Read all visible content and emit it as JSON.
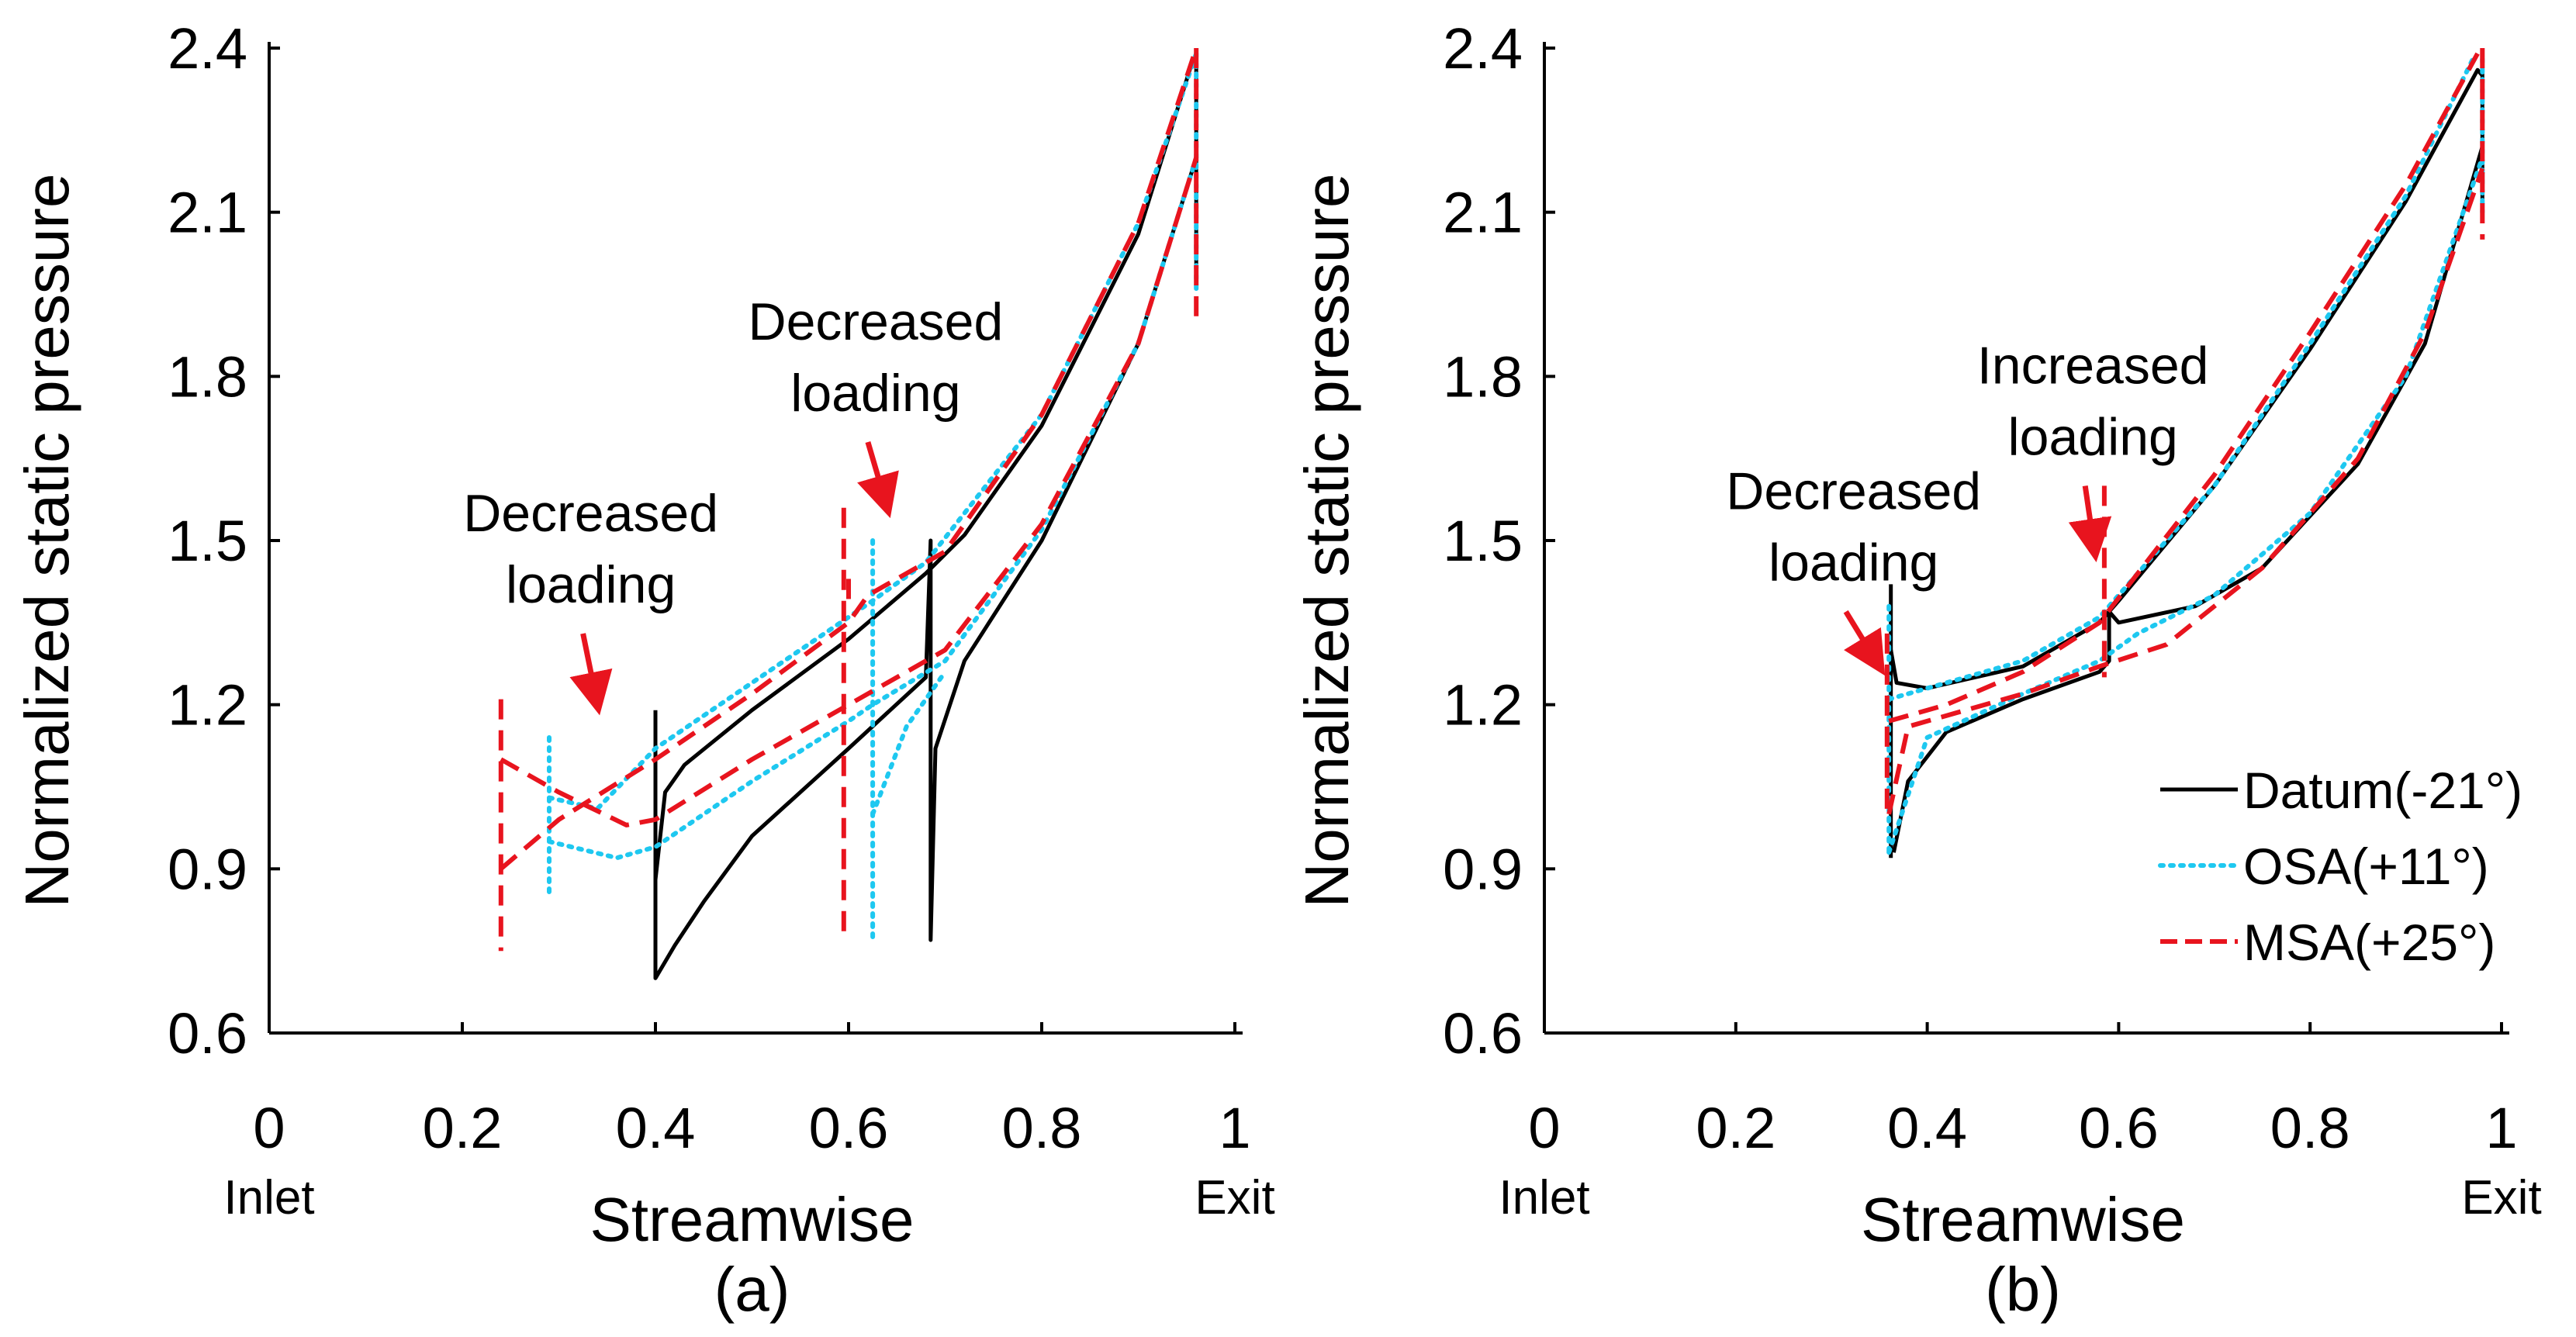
{
  "chart_data": [
    {
      "type": "line",
      "panel_label": "(a)",
      "xlabel": "Streamwise",
      "ylabel": "Normalized static pressure",
      "xlim": [
        0,
        1
      ],
      "ylim": [
        0.6,
        2.4
      ],
      "xticks": [
        "0",
        "0.2",
        "0.4",
        "0.6",
        "0.8",
        "1"
      ],
      "yticks": [
        "0.6",
        "0.9",
        "1.2",
        "1.5",
        "1.8",
        "2.1",
        "2.4"
      ],
      "x_end_labels": {
        "start": "Inlet",
        "end": "Exit"
      },
      "annotations": [
        {
          "text": [
            "Decreased",
            "loading"
          ],
          "arrow_from": [
            0.325,
            1.33
          ],
          "arrow_to": [
            0.34,
            1.2
          ]
        },
        {
          "text": [
            "Decreased",
            "loading"
          ],
          "arrow_from": [
            0.62,
            1.68
          ],
          "arrow_to": [
            0.64,
            1.56
          ]
        }
      ],
      "series": [
        {
          "name": "Datum(-21°)",
          "style": "solid",
          "color": "#000000",
          "curves": [
            [
              [
                0.4,
                1.19
              ],
              [
                0.4,
                0.88
              ],
              [
                0.41,
                1.04
              ],
              [
                0.43,
                1.09
              ],
              [
                0.5,
                1.19
              ],
              [
                0.6,
                1.32
              ],
              [
                0.68,
                1.44
              ],
              [
                0.72,
                1.51
              ],
              [
                0.8,
                1.71
              ],
              [
                0.9,
                2.06
              ],
              [
                0.955,
                2.37
              ],
              [
                0.96,
                2.39
              ]
            ],
            [
              [
                0.4,
                0.88
              ],
              [
                0.4,
                0.7
              ],
              [
                0.42,
                0.76
              ],
              [
                0.45,
                0.84
              ],
              [
                0.5,
                0.96
              ],
              [
                0.6,
                1.12
              ],
              [
                0.68,
                1.25
              ],
              [
                0.685,
                1.5
              ],
              [
                0.685,
                0.77
              ],
              [
                0.69,
                1.12
              ],
              [
                0.72,
                1.28
              ],
              [
                0.8,
                1.5
              ],
              [
                0.9,
                1.86
              ],
              [
                0.96,
                2.2
              ]
            ],
            [
              [
                0.96,
                2.39
              ],
              [
                0.96,
                1.96
              ]
            ]
          ]
        },
        {
          "name": "OSA(+11°)",
          "style": "dotted",
          "color": "#1ec8f0",
          "curves": [
            [
              [
                0.29,
                1.14
              ],
              [
                0.29,
                0.85
              ]
            ],
            [
              [
                0.29,
                1.03
              ],
              [
                0.34,
                1.01
              ],
              [
                0.4,
                1.12
              ],
              [
                0.5,
                1.24
              ],
              [
                0.6,
                1.36
              ],
              [
                0.625,
                1.39
              ],
              [
                0.68,
                1.46
              ],
              [
                0.8,
                1.73
              ],
              [
                0.9,
                2.08
              ],
              [
                0.96,
                2.39
              ]
            ],
            [
              [
                0.29,
                0.95
              ],
              [
                0.36,
                0.92
              ],
              [
                0.4,
                0.94
              ],
              [
                0.5,
                1.06
              ],
              [
                0.6,
                1.17
              ],
              [
                0.625,
                1.2
              ],
              [
                0.7,
                1.28
              ],
              [
                0.8,
                1.52
              ],
              [
                0.9,
                1.86
              ],
              [
                0.96,
                2.2
              ]
            ],
            [
              [
                0.625,
                1.5
              ],
              [
                0.625,
                0.77
              ]
            ],
            [
              [
                0.625,
                1.0
              ],
              [
                0.66,
                1.16
              ],
              [
                0.7,
                1.26
              ]
            ],
            [
              [
                0.96,
                2.39
              ],
              [
                0.96,
                1.96
              ]
            ]
          ]
        },
        {
          "name": "MSA(+25°)",
          "style": "dashed",
          "color": "#e8141e",
          "curves": [
            [
              [
                0.24,
                1.21
              ],
              [
                0.24,
                0.75
              ]
            ],
            [
              [
                0.24,
                1.1
              ],
              [
                0.3,
                1.04
              ],
              [
                0.37,
                0.98
              ],
              [
                0.4,
                0.99
              ],
              [
                0.5,
                1.1
              ],
              [
                0.6,
                1.2
              ],
              [
                0.7,
                1.3
              ],
              [
                0.8,
                1.53
              ],
              [
                0.9,
                1.86
              ],
              [
                0.96,
                2.2
              ]
            ],
            [
              [
                0.24,
                0.9
              ],
              [
                0.3,
                0.99
              ],
              [
                0.4,
                1.1
              ],
              [
                0.5,
                1.22
              ],
              [
                0.6,
                1.35
              ],
              [
                0.62,
                1.4
              ],
              [
                0.7,
                1.48
              ],
              [
                0.8,
                1.73
              ],
              [
                0.9,
                2.08
              ],
              [
                0.96,
                2.4
              ]
            ],
            [
              [
                0.595,
                1.56
              ],
              [
                0.595,
                0.77
              ]
            ],
            [
              [
                0.6,
                1.43
              ],
              [
                0.6,
                1.38
              ]
            ],
            [
              [
                0.96,
                2.4
              ],
              [
                0.96,
                1.91
              ]
            ]
          ]
        }
      ]
    },
    {
      "type": "line",
      "panel_label": "(b)",
      "xlabel": "Streamwise",
      "ylabel": "Normalized static pressure",
      "xlim": [
        0,
        1
      ],
      "ylim": [
        0.6,
        2.4
      ],
      "xticks": [
        "0",
        "0.2",
        "0.4",
        "0.6",
        "0.8",
        "1"
      ],
      "yticks": [
        "0.6",
        "0.9",
        "1.2",
        "1.5",
        "1.8",
        "2.1",
        "2.4"
      ],
      "x_end_labels": {
        "start": "Inlet",
        "end": "Exit"
      },
      "legend": {
        "placement": "right"
      },
      "annotations": [
        {
          "text": [
            "Decreased",
            "loading"
          ],
          "arrow_from": [
            0.315,
            1.37
          ],
          "arrow_to": [
            0.35,
            1.27
          ]
        },
        {
          "text": [
            "Increased",
            "loading"
          ],
          "arrow_from": [
            0.565,
            1.6
          ],
          "arrow_to": [
            0.575,
            1.48
          ]
        }
      ],
      "series": [
        {
          "name": "Datum(-21°)",
          "style": "solid",
          "color": "#000000",
          "curves": [
            [
              [
                0.362,
                1.42
              ],
              [
                0.362,
                0.92
              ]
            ],
            [
              [
                0.362,
                1.3
              ],
              [
                0.368,
                1.24
              ],
              [
                0.4,
                1.23
              ],
              [
                0.5,
                1.27
              ],
              [
                0.58,
                1.35
              ],
              [
                0.6,
                1.39
              ],
              [
                0.7,
                1.6
              ],
              [
                0.8,
                1.85
              ],
              [
                0.9,
                2.12
              ],
              [
                0.975,
                2.36
              ],
              [
                0.98,
                2.35
              ]
            ],
            [
              [
                0.365,
                0.93
              ],
              [
                0.38,
                1.06
              ],
              [
                0.42,
                1.15
              ],
              [
                0.5,
                1.21
              ],
              [
                0.58,
                1.26
              ],
              [
                0.59,
                1.28
              ],
              [
                0.59,
                1.37
              ],
              [
                0.6,
                1.35
              ],
              [
                0.68,
                1.38
              ],
              [
                0.75,
                1.45
              ],
              [
                0.85,
                1.64
              ],
              [
                0.92,
                1.86
              ],
              [
                0.98,
                2.22
              ]
            ],
            [
              [
                0.98,
                2.36
              ],
              [
                0.98,
                2.1
              ]
            ]
          ]
        },
        {
          "name": "OSA(+11°)",
          "style": "dotted",
          "color": "#1ec8f0",
          "curves": [
            [
              [
                0.36,
                1.38
              ],
              [
                0.36,
                0.92
              ]
            ],
            [
              [
                0.36,
                1.21
              ],
              [
                0.5,
                1.28
              ],
              [
                0.58,
                1.36
              ],
              [
                0.7,
                1.6
              ],
              [
                0.8,
                1.86
              ],
              [
                0.9,
                2.13
              ],
              [
                0.97,
                2.38
              ]
            ],
            [
              [
                0.36,
                0.93
              ],
              [
                0.4,
                1.14
              ],
              [
                0.5,
                1.22
              ],
              [
                0.58,
                1.28
              ],
              [
                0.62,
                1.33
              ],
              [
                0.7,
                1.4
              ],
              [
                0.8,
                1.55
              ],
              [
                0.9,
                1.8
              ],
              [
                0.98,
                2.2
              ]
            ],
            [
              [
                0.98,
                2.38
              ],
              [
                0.98,
                2.1
              ]
            ]
          ]
        },
        {
          "name": "MSA(+25°)",
          "style": "dashed",
          "color": "#e8141e",
          "curves": [
            [
              [
                0.358,
                1.33
              ],
              [
                0.358,
                1.0
              ]
            ],
            [
              [
                0.36,
                1.17
              ],
              [
                0.42,
                1.2
              ],
              [
                0.5,
                1.26
              ],
              [
                0.58,
                1.35
              ],
              [
                0.7,
                1.62
              ],
              [
                0.8,
                1.88
              ],
              [
                0.9,
                2.15
              ],
              [
                0.975,
                2.39
              ]
            ],
            [
              [
                0.36,
                1.0
              ],
              [
                0.38,
                1.16
              ],
              [
                0.5,
                1.22
              ],
              [
                0.58,
                1.27
              ],
              [
                0.65,
                1.31
              ],
              [
                0.75,
                1.45
              ],
              [
                0.85,
                1.65
              ],
              [
                0.92,
                1.88
              ],
              [
                0.98,
                2.18
              ]
            ],
            [
              [
                0.585,
                1.6
              ],
              [
                0.585,
                1.25
              ]
            ],
            [
              [
                0.98,
                2.4
              ],
              [
                0.98,
                2.05
              ]
            ]
          ]
        }
      ]
    }
  ]
}
